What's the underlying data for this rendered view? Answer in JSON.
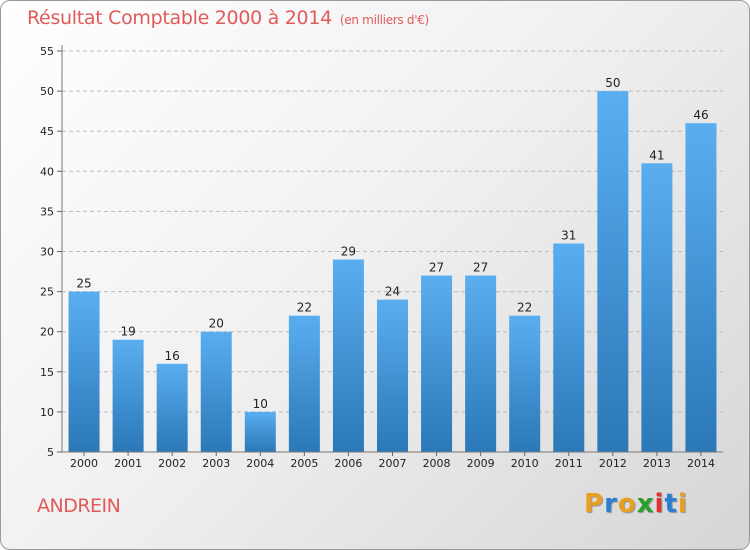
{
  "header": {
    "title": "Résultat Comptable 2000 à 2014",
    "unit": "(en milliers d'€)"
  },
  "footer": {
    "town": "ANDREIN",
    "brand_letters": [
      "P",
      "r",
      "o",
      "x",
      "i",
      "t",
      "i"
    ],
    "brand_colors": [
      "#e8a020",
      "#2a7fd0",
      "#e8a020",
      "#2aa02a",
      "#e03030",
      "#2a7fd0",
      "#e8a020"
    ]
  },
  "colors": {
    "title": "#e15a5a",
    "bar_top": "#5aaef0",
    "bar_bottom": "#2a78b8"
  },
  "chart_data": {
    "type": "bar",
    "title": "Résultat Comptable 2000 à 2014",
    "subtitle": "(en milliers d'€)",
    "categories": [
      "2000",
      "2001",
      "2002",
      "2003",
      "2004",
      "2005",
      "2006",
      "2007",
      "2008",
      "2009",
      "2010",
      "2011",
      "2012",
      "2013",
      "2014"
    ],
    "values": [
      25,
      19,
      16,
      20,
      10,
      22,
      29,
      24,
      27,
      27,
      22,
      31,
      50,
      41,
      46
    ],
    "ylim": [
      5,
      55
    ],
    "yticks": [
      5,
      10,
      15,
      20,
      25,
      30,
      35,
      40,
      45,
      50,
      55
    ],
    "grid": true,
    "grid_style": "dashed horizontal"
  }
}
